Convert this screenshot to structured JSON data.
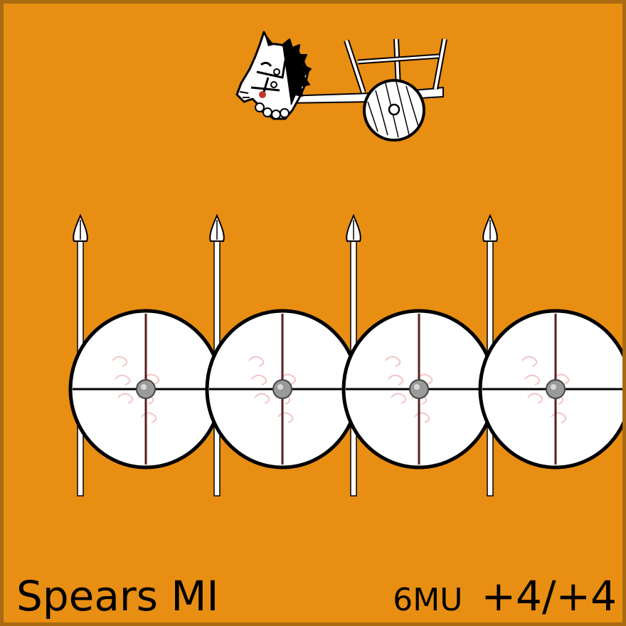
{
  "card": {
    "background_color": "#E88E13",
    "border_color": "#A96A10",
    "unit_name": "Spears MI",
    "movement": "6MU",
    "combat_factors": "+4/+4"
  },
  "icons": {
    "top": "horse-chariot-icon",
    "main": "spear-shield-wall-icon"
  },
  "spearmen_count": 4
}
